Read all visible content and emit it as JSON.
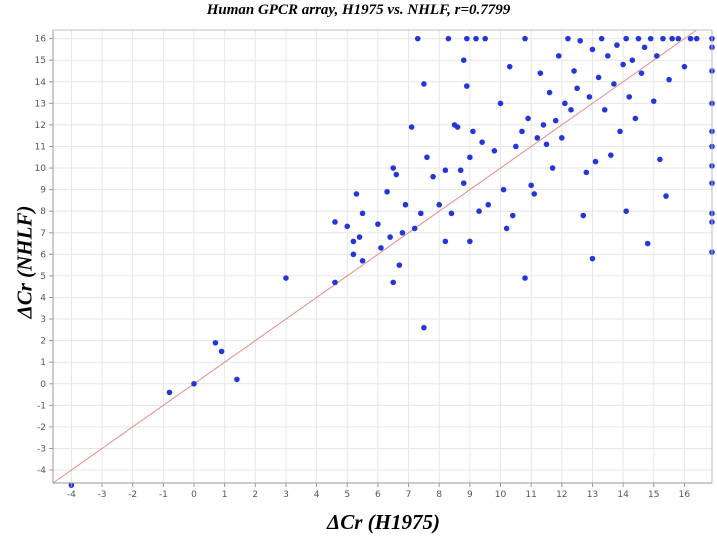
{
  "chart_data": {
    "type": "scatter",
    "title": "Human GPCR array, H1975 vs. NHLF, r=0.7799",
    "xlabel": "ΔCr (H1975)",
    "ylabel": "ΔCr (NHLF)",
    "xlim": [
      -4.6,
      16.9
    ],
    "ylim": [
      -4.6,
      16.4
    ],
    "xticks": [
      -4,
      -3,
      -2,
      -1,
      0,
      1,
      2,
      3,
      4,
      5,
      6,
      7,
      8,
      9,
      10,
      11,
      12,
      13,
      14,
      15,
      16
    ],
    "yticks": [
      -4,
      -3,
      -2,
      -1,
      0,
      1,
      2,
      3,
      4,
      5,
      6,
      7,
      8,
      9,
      10,
      11,
      12,
      13,
      14,
      15,
      16
    ],
    "grid": true,
    "legend": "none",
    "colors": {
      "points": "#2436d8",
      "diagonal": "#e88a8a",
      "grid": "#e6e6e6",
      "axis": "#9a9a9a"
    },
    "diagonal": {
      "from": [
        -4.6,
        -4.6
      ],
      "to": [
        16.4,
        16.4
      ]
    },
    "series": [
      {
        "points": [
          [
            -4.0,
            -4.7
          ],
          [
            -0.8,
            -0.4
          ],
          [
            0.0,
            0.0
          ],
          [
            0.7,
            1.9
          ],
          [
            0.9,
            1.5
          ],
          [
            1.4,
            0.2
          ],
          [
            3.0,
            4.9
          ],
          [
            4.6,
            4.7
          ],
          [
            4.6,
            7.5
          ],
          [
            5.0,
            7.3
          ],
          [
            5.2,
            6.6
          ],
          [
            5.2,
            6.0
          ],
          [
            5.3,
            8.8
          ],
          [
            5.4,
            6.8
          ],
          [
            5.5,
            5.7
          ],
          [
            5.5,
            7.9
          ],
          [
            6.0,
            7.4
          ],
          [
            6.1,
            6.3
          ],
          [
            6.3,
            8.9
          ],
          [
            6.4,
            6.8
          ],
          [
            6.5,
            4.7
          ],
          [
            6.5,
            10.0
          ],
          [
            6.6,
            9.7
          ],
          [
            6.7,
            5.5
          ],
          [
            6.8,
            7.0
          ],
          [
            6.9,
            8.3
          ],
          [
            7.1,
            11.9
          ],
          [
            7.2,
            7.2
          ],
          [
            7.3,
            16.0
          ],
          [
            7.4,
            7.9
          ],
          [
            7.5,
            2.6
          ],
          [
            7.5,
            13.9
          ],
          [
            7.6,
            10.5
          ],
          [
            7.8,
            9.6
          ],
          [
            8.0,
            8.3
          ],
          [
            8.2,
            6.6
          ],
          [
            8.2,
            9.9
          ],
          [
            8.3,
            16.0
          ],
          [
            8.4,
            7.9
          ],
          [
            8.5,
            12.0
          ],
          [
            8.6,
            11.9
          ],
          [
            8.7,
            9.9
          ],
          [
            8.8,
            9.3
          ],
          [
            8.8,
            15.0
          ],
          [
            8.9,
            13.8
          ],
          [
            8.9,
            16.0
          ],
          [
            9.0,
            6.6
          ],
          [
            9.0,
            10.5
          ],
          [
            9.1,
            11.7
          ],
          [
            9.2,
            16.0
          ],
          [
            9.3,
            8.0
          ],
          [
            9.4,
            11.2
          ],
          [
            9.5,
            16.0
          ],
          [
            9.6,
            8.3
          ],
          [
            9.8,
            10.8
          ],
          [
            10.0,
            13.0
          ],
          [
            10.1,
            9.0
          ],
          [
            10.2,
            7.2
          ],
          [
            10.3,
            14.7
          ],
          [
            10.4,
            7.8
          ],
          [
            10.5,
            11.0
          ],
          [
            10.7,
            11.7
          ],
          [
            10.8,
            4.9
          ],
          [
            10.8,
            16.0
          ],
          [
            10.9,
            12.3
          ],
          [
            11.0,
            9.2
          ],
          [
            11.1,
            8.8
          ],
          [
            11.2,
            11.4
          ],
          [
            11.3,
            14.4
          ],
          [
            11.4,
            12.0
          ],
          [
            11.5,
            11.1
          ],
          [
            11.6,
            13.5
          ],
          [
            11.7,
            10.0
          ],
          [
            11.8,
            12.2
          ],
          [
            11.9,
            15.2
          ],
          [
            12.0,
            11.4
          ],
          [
            12.1,
            13.0
          ],
          [
            12.2,
            16.0
          ],
          [
            12.3,
            12.7
          ],
          [
            12.4,
            14.5
          ],
          [
            12.5,
            13.7
          ],
          [
            12.6,
            15.9
          ],
          [
            12.7,
            7.8
          ],
          [
            12.8,
            9.8
          ],
          [
            12.9,
            13.3
          ],
          [
            13.0,
            5.8
          ],
          [
            13.0,
            15.5
          ],
          [
            13.1,
            10.3
          ],
          [
            13.2,
            14.2
          ],
          [
            13.3,
            16.0
          ],
          [
            13.4,
            12.7
          ],
          [
            13.5,
            15.2
          ],
          [
            13.6,
            10.6
          ],
          [
            13.7,
            13.9
          ],
          [
            13.8,
            15.7
          ],
          [
            13.9,
            11.7
          ],
          [
            14.0,
            14.8
          ],
          [
            14.1,
            8.0
          ],
          [
            14.1,
            16.0
          ],
          [
            14.2,
            13.3
          ],
          [
            14.3,
            15.0
          ],
          [
            14.4,
            12.3
          ],
          [
            14.5,
            16.0
          ],
          [
            14.6,
            14.4
          ],
          [
            14.7,
            15.6
          ],
          [
            14.8,
            6.5
          ],
          [
            14.9,
            16.0
          ],
          [
            15.0,
            13.1
          ],
          [
            15.1,
            15.2
          ],
          [
            15.2,
            10.4
          ],
          [
            15.3,
            16.0
          ],
          [
            15.4,
            8.7
          ],
          [
            15.5,
            14.1
          ],
          [
            15.6,
            16.0
          ],
          [
            15.8,
            16.0
          ],
          [
            16.0,
            14.7
          ],
          [
            16.2,
            16.0
          ],
          [
            16.4,
            16.0
          ],
          [
            16.9,
            16.0
          ],
          [
            16.9,
            15.6
          ],
          [
            16.9,
            14.5
          ],
          [
            16.9,
            13.0
          ],
          [
            16.9,
            11.7
          ],
          [
            16.9,
            11.0
          ],
          [
            16.9,
            10.1
          ],
          [
            16.9,
            9.3
          ],
          [
            16.9,
            7.9
          ],
          [
            16.9,
            7.5
          ],
          [
            16.9,
            6.1
          ]
        ]
      }
    ]
  }
}
